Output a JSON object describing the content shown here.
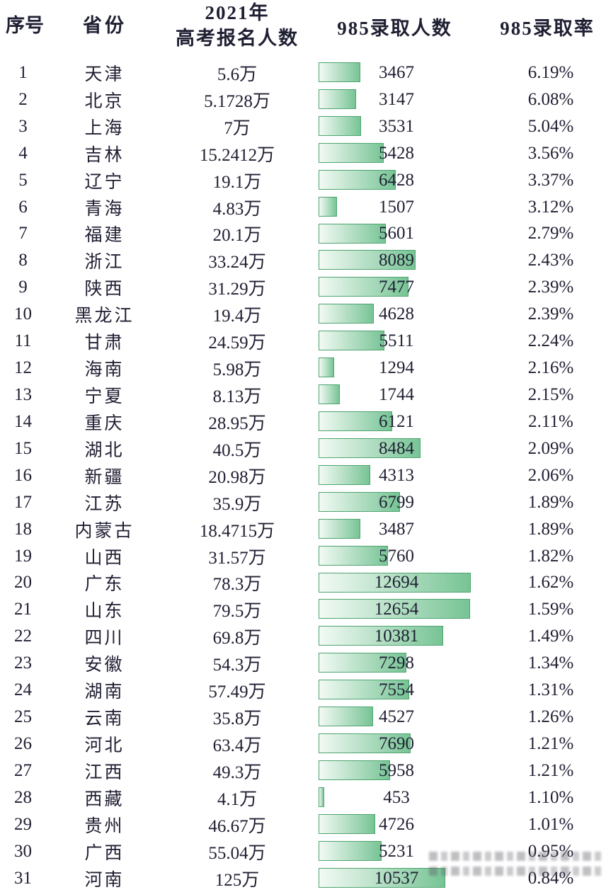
{
  "header": {
    "rank": "序号",
    "province": "省份",
    "applicants_line1": "2021年",
    "applicants_line2": "高考报名人数",
    "admitted": "985录取人数",
    "rate": "985录取率"
  },
  "colors": {
    "text": "#1f1f33",
    "bar_start": "#f2faf4",
    "bar_end": "#77c495",
    "bar_border": "#4ea46f"
  },
  "chart_data": {
    "type": "bar",
    "orientation": "horizontal",
    "title": "2021年高考报名人数 / 985录取人数 / 985录取率",
    "xlim": [
      0,
      12694
    ],
    "grid": false,
    "legend": "none",
    "categories": [
      "天津",
      "北京",
      "上海",
      "吉林",
      "辽宁",
      "青海",
      "福建",
      "浙江",
      "陕西",
      "黑龙江",
      "甘肃",
      "海南",
      "宁夏",
      "重庆",
      "湖北",
      "新疆",
      "江苏",
      "内蒙古",
      "山西",
      "广东",
      "山东",
      "四川",
      "安徽",
      "湖南",
      "云南",
      "河北",
      "江西",
      "西藏",
      "贵州",
      "广西",
      "河南"
    ],
    "series": [
      {
        "name": "2021年高考报名人数",
        "values": [
          "5.6万",
          "5.1728万",
          "7万",
          "15.2412万",
          "19.1万",
          "4.83万",
          "20.1万",
          "33.24万",
          "31.29万",
          "19.4万",
          "24.59万",
          "5.98万",
          "8.13万",
          "28.95万",
          "40.5万",
          "20.98万",
          "35.9万",
          "18.4715万",
          "31.57万",
          "78.3万",
          "79.5万",
          "69.8万",
          "54.3万",
          "57.49万",
          "35.8万",
          "63.4万",
          "49.3万",
          "4.1万",
          "46.67万",
          "55.04万",
          "125万"
        ]
      },
      {
        "name": "985录取人数",
        "values": [
          3467,
          3147,
          3531,
          5428,
          6428,
          1507,
          5601,
          8089,
          7477,
          4628,
          5511,
          1294,
          1744,
          6121,
          8484,
          4313,
          6799,
          3487,
          5760,
          12694,
          12654,
          10381,
          7298,
          7554,
          4527,
          7690,
          5958,
          453,
          4726,
          5231,
          10537
        ]
      },
      {
        "name": "985录取率",
        "values": [
          "6.19%",
          "6.08%",
          "5.04%",
          "3.56%",
          "3.37%",
          "3.12%",
          "2.79%",
          "2.43%",
          "2.39%",
          "2.39%",
          "2.24%",
          "2.16%",
          "2.15%",
          "2.11%",
          "2.09%",
          "2.06%",
          "1.89%",
          "1.89%",
          "1.82%",
          "1.62%",
          "1.59%",
          "1.49%",
          "1.34%",
          "1.31%",
          "1.26%",
          "1.21%",
          "1.21%",
          "1.10%",
          "1.01%",
          "0.95%",
          "0.84%"
        ]
      }
    ]
  }
}
